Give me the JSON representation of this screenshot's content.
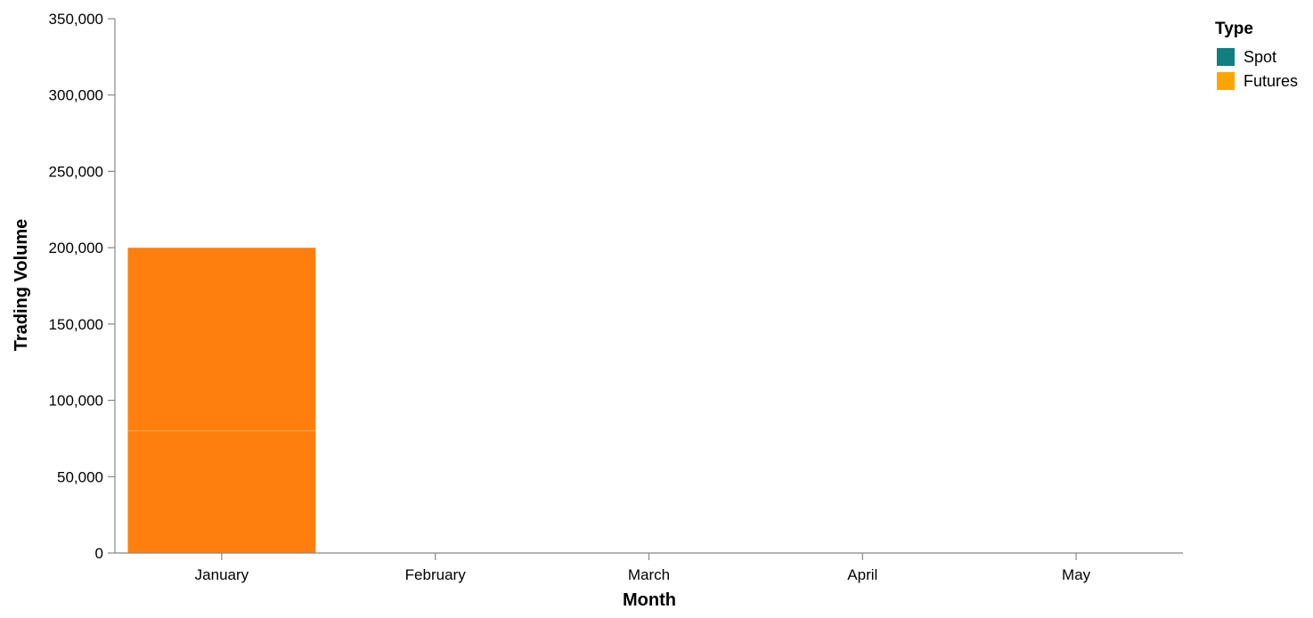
{
  "chart_data": {
    "type": "bar",
    "stacked": true,
    "xlabel": "Month",
    "ylabel": "Trading Volume",
    "categories": [
      "January",
      "February",
      "March",
      "April",
      "May"
    ],
    "ylim": [
      0,
      350000
    ],
    "yticks": [
      0,
      50000,
      100000,
      150000,
      200000,
      250000,
      300000,
      350000
    ],
    "grid": false,
    "legend": {
      "title": "Type",
      "position": "top-right",
      "entries": [
        {
          "name": "Spot",
          "color": "#0f7f7f"
        },
        {
          "name": "Futures",
          "color": "#ffa500"
        }
      ]
    },
    "series": [
      {
        "name": "Spot",
        "values": [
          80000,
          null,
          null,
          null,
          null
        ],
        "color": "#ff7f0e"
      },
      {
        "name": "Futures",
        "values": [
          120000,
          null,
          null,
          null,
          null
        ],
        "color": "#ff7f0e"
      }
    ]
  }
}
